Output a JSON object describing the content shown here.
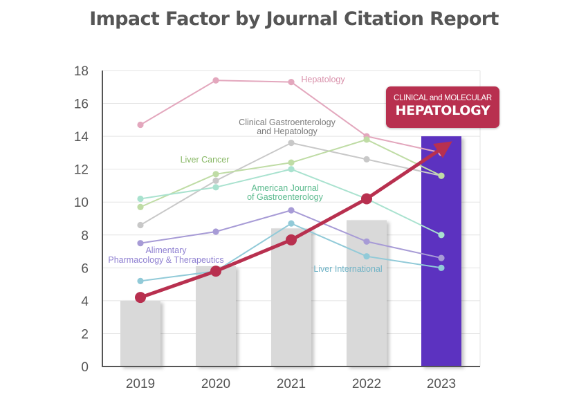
{
  "title": "Impact Factor by Journal Citation Report",
  "badge": {
    "line1": "CLINICAL and MOLECULAR",
    "line2": "HEPATOLOGY",
    "color": "#b8304f"
  },
  "chart_data": {
    "type": "bar",
    "title": "Impact Factor by Journal Citation Report",
    "categories": [
      "2019",
      "2020",
      "2021",
      "2022",
      "2023"
    ],
    "ylim": [
      0,
      18
    ],
    "yticks": [
      0,
      2,
      4,
      6,
      8,
      10,
      12,
      14,
      16,
      18
    ],
    "grid": true,
    "bars": {
      "values": [
        4.0,
        6.1,
        8.4,
        8.9,
        14.0
      ],
      "colors": [
        "#d9d9d9",
        "#d9d9d9",
        "#d9d9d9",
        "#d9d9d9",
        "#5b30c0"
      ]
    },
    "highlight_line": {
      "values": [
        4.2,
        5.8,
        7.7,
        10.2,
        13.5
      ],
      "color": "#b8304f"
    },
    "series": [
      {
        "name": "Hepatology",
        "values": [
          14.7,
          17.4,
          17.3,
          14.0,
          13.0
        ],
        "color": "#e3a7bd"
      },
      {
        "name": "Clinical Gastroenterology and Hepatology",
        "values": [
          8.6,
          11.3,
          13.6,
          12.6,
          11.6
        ],
        "color": "#c8c8c8"
      },
      {
        "name": "Liver Cancer",
        "values": [
          9.7,
          11.7,
          12.4,
          13.8,
          11.6
        ],
        "color": "#bfdca5"
      },
      {
        "name": "American Journal of Gastroenterology",
        "values": [
          10.2,
          10.9,
          12.0,
          10.2,
          8.0
        ],
        "color": "#a9e2cf"
      },
      {
        "name": "Alimentary Pharmacology & Therapeutics",
        "values": [
          7.5,
          8.2,
          9.5,
          7.6,
          6.6
        ],
        "color": "#a79bd6"
      },
      {
        "name": "Liver International",
        "values": [
          5.2,
          5.8,
          8.7,
          6.7,
          6.0
        ],
        "color": "#91cad8"
      }
    ]
  }
}
